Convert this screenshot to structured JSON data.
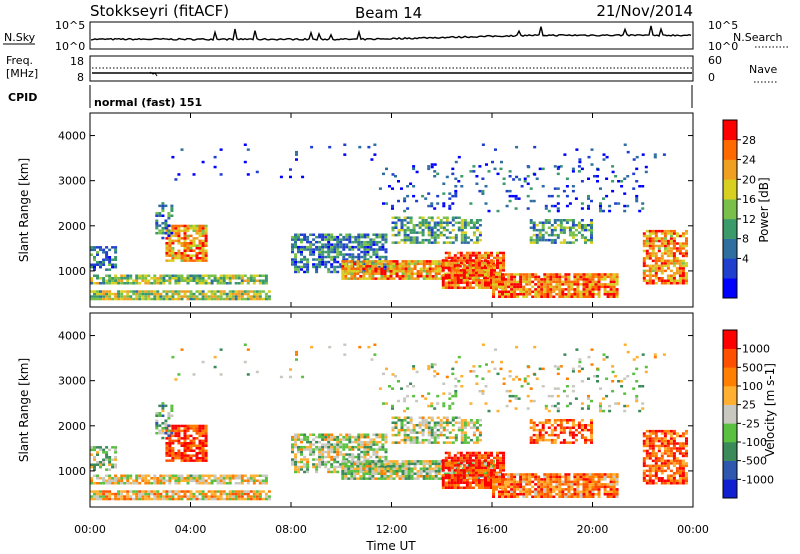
{
  "header": {
    "station": "Stokkseyri (fitACF)",
    "beam": "Beam 14",
    "date": "21/Nov/2014"
  },
  "noise_panel": {
    "left_label": "N.Sky",
    "right_label": "N.Search",
    "left_ticks": [
      "10^5",
      "10^0"
    ],
    "right_ticks": [
      "10^5",
      "10^0"
    ]
  },
  "freq_panel": {
    "left_label_line1": "Freq.",
    "left_label_line2": "[MHz]",
    "left_ticks": [
      "18",
      "8"
    ],
    "right_label": "Nave",
    "right_ticks": [
      "60",
      "0"
    ]
  },
  "cpid_panel": {
    "label": "CPID",
    "mode_text": "normal (fast) 151"
  },
  "chart_data": [
    {
      "type": "heatmap",
      "parameter": "Power",
      "ylabel": "Slant Range [km]",
      "yticks": [
        "1000",
        "2000",
        "3000",
        "4000"
      ],
      "ylim": [
        200,
        4500
      ],
      "xlim": [
        0,
        24
      ],
      "colorbar_label": "Power [dB]",
      "colorbar_ticks": [
        "28",
        "24",
        "20",
        "16",
        "12",
        "8",
        "4"
      ],
      "colorbar_colors": [
        "#0000ff",
        "#1f3fcf",
        "#2f6fa0",
        "#3b9a6a",
        "#78c04a",
        "#d8d020",
        "#f0a020",
        "#ff6a00",
        "#ff0000"
      ]
    },
    {
      "type": "heatmap",
      "parameter": "Velocity",
      "ylabel": "Slant Range [km]",
      "yticks": [
        "1000",
        "2000",
        "3000",
        "4000"
      ],
      "ylim": [
        200,
        4500
      ],
      "xlim": [
        0,
        24
      ],
      "xticks": [
        "00:00",
        "04:00",
        "08:00",
        "12:00",
        "16:00",
        "20:00",
        "00:00"
      ],
      "xlabel": "Time UT",
      "colorbar_label": "Velocity [m s-1]",
      "colorbar_ticks": [
        "1000",
        "500",
        "100",
        "25",
        "-25",
        "-100",
        "-500",
        "-1000"
      ],
      "colorbar_colors": [
        "#1020d0",
        "#2e58b0",
        "#3a8a5a",
        "#5ac040",
        "#c8c8c0",
        "#ffb030",
        "#ff8000",
        "#ff5000",
        "#ff0000"
      ]
    }
  ]
}
